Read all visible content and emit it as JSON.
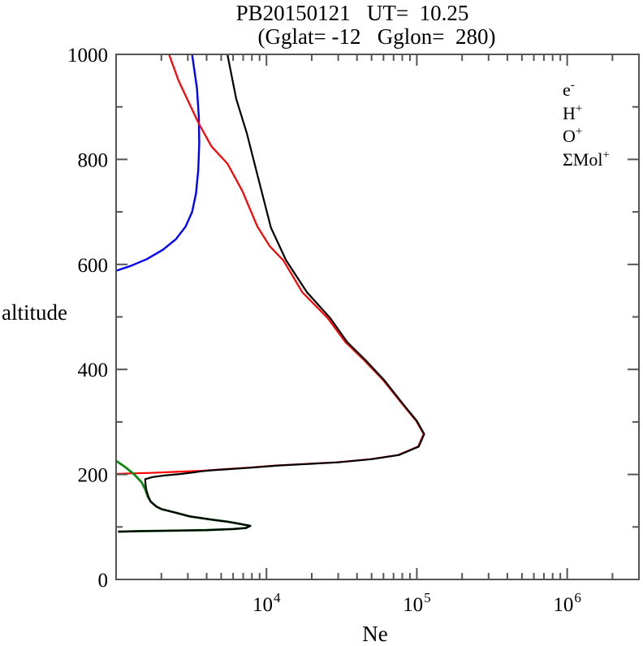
{
  "chart_data": {
    "type": "line",
    "title": "PB20150121   UT=  10.25",
    "subtitle": "(Gglat= -12   Gglon=  280)",
    "xlabel": "Ne",
    "ylabel": "altitude",
    "x_scale": "log",
    "y_scale": "linear",
    "xlim": [
      1000,
      3000000
    ],
    "ylim": [
      0,
      1000
    ],
    "grid": false,
    "frame_color": "#555555",
    "x_major_ticks": [
      {
        "value": 10000,
        "base": "10",
        "exp": "4"
      },
      {
        "value": 100000,
        "base": "10",
        "exp": "5"
      },
      {
        "value": 1000000,
        "base": "10",
        "exp": "6"
      }
    ],
    "y_major_ticks": [
      {
        "value": 0,
        "label": "0"
      },
      {
        "value": 200,
        "label": "200"
      },
      {
        "value": 400,
        "label": "400"
      },
      {
        "value": 600,
        "label": "600"
      },
      {
        "value": 800,
        "label": "800"
      },
      {
        "value": 1000,
        "label": "1000"
      }
    ],
    "y_minor_ticks": [
      100,
      300,
      500,
      700,
      900
    ],
    "legend_position": "upper-right-inside",
    "legend": [
      {
        "id": "electron",
        "base": "e",
        "sup": "-",
        "color": "#000000"
      },
      {
        "id": "h-plus",
        "base": "H",
        "sup": "+",
        "color": "#0000ff"
      },
      {
        "id": "o-plus",
        "base": "O",
        "sup": "+",
        "color": "#ff0000"
      },
      {
        "id": "mol-plus",
        "base": "ΣMol",
        "sup": "+",
        "color": "#118811"
      }
    ],
    "series": [
      {
        "id": "h-plus",
        "name": "H+",
        "color": "#0000ff",
        "width": 2.4,
        "points": [
          [
            3200,
            1000
          ],
          [
            3450,
            935
          ],
          [
            3550,
            880
          ],
          [
            3570,
            830
          ],
          [
            3520,
            780
          ],
          [
            3400,
            735
          ],
          [
            3200,
            700
          ],
          [
            2900,
            672
          ],
          [
            2500,
            648
          ],
          [
            2050,
            628
          ],
          [
            1600,
            610
          ],
          [
            1250,
            597
          ],
          [
            1000,
            588
          ]
        ]
      },
      {
        "id": "o-plus",
        "name": "O+",
        "color": "#ff0000",
        "width": 2.2,
        "points": [
          [
            2250,
            1000
          ],
          [
            2600,
            950
          ],
          [
            3000,
            912
          ],
          [
            3550,
            868
          ],
          [
            4300,
            825
          ],
          [
            5500,
            792
          ],
          [
            6900,
            740
          ],
          [
            8700,
            672
          ],
          [
            10500,
            635
          ],
          [
            13000,
            607
          ],
          [
            17300,
            547
          ],
          [
            25500,
            498
          ],
          [
            33500,
            452
          ],
          [
            44500,
            418
          ],
          [
            59500,
            380
          ],
          [
            80500,
            333
          ],
          [
            99000,
            302
          ],
          [
            111000,
            277
          ],
          [
            102000,
            253
          ],
          [
            75000,
            237
          ],
          [
            49000,
            229
          ],
          [
            29000,
            223
          ],
          [
            18000,
            220
          ],
          [
            11500,
            217
          ],
          [
            7600,
            213
          ],
          [
            5300,
            210
          ],
          [
            3700,
            207
          ],
          [
            2500,
            205
          ],
          [
            1700,
            203
          ],
          [
            1250,
            202
          ],
          [
            1000,
            201
          ]
        ]
      },
      {
        "id": "mol-plus",
        "name": "ΣMol+",
        "color": "#118811",
        "width": 2.8,
        "points": [
          [
            1000,
            226
          ],
          [
            1150,
            214
          ],
          [
            1320,
            200
          ],
          [
            1480,
            185
          ],
          [
            1570,
            170
          ],
          [
            1620,
            158
          ],
          [
            1700,
            148
          ],
          [
            1850,
            139
          ],
          [
            2000,
            134
          ],
          [
            2500,
            127
          ],
          [
            3100,
            120
          ],
          [
            4300,
            114
          ],
          [
            5500,
            110
          ],
          [
            6600,
            106
          ],
          [
            7800,
            102
          ],
          [
            7300,
            98
          ],
          [
            6000,
            96
          ],
          [
            4000,
            94
          ],
          [
            2500,
            93
          ],
          [
            1400,
            92
          ],
          [
            1030,
            91
          ]
        ]
      },
      {
        "id": "electron",
        "name": "e-",
        "color": "#000000",
        "width": 2.2,
        "points": [
          [
            5500,
            1000
          ],
          [
            6300,
            915
          ],
          [
            7400,
            850
          ],
          [
            8900,
            760
          ],
          [
            10700,
            670
          ],
          [
            13500,
            608
          ],
          [
            18600,
            547
          ],
          [
            26500,
            498
          ],
          [
            34500,
            452
          ],
          [
            45500,
            418
          ],
          [
            60500,
            380
          ],
          [
            81500,
            333
          ],
          [
            100000,
            302
          ],
          [
            112000,
            277
          ],
          [
            103000,
            253
          ],
          [
            76000,
            237
          ],
          [
            50000,
            229
          ],
          [
            30000,
            223
          ],
          [
            19000,
            220
          ],
          [
            12000,
            217
          ],
          [
            8000,
            213
          ],
          [
            5600,
            210
          ],
          [
            4400,
            208
          ],
          [
            3700,
            206
          ],
          [
            3300,
            204
          ],
          [
            2700,
            201
          ],
          [
            2100,
            198
          ],
          [
            1750,
            195
          ],
          [
            1560,
            191
          ],
          [
            1570,
            180
          ],
          [
            1590,
            170
          ],
          [
            1640,
            158
          ],
          [
            1700,
            148
          ],
          [
            1850,
            139
          ],
          [
            2000,
            134
          ],
          [
            2500,
            127
          ],
          [
            3100,
            120
          ],
          [
            4300,
            114
          ],
          [
            5500,
            110
          ],
          [
            6600,
            106
          ],
          [
            7800,
            102
          ],
          [
            7300,
            98
          ],
          [
            6000,
            96
          ],
          [
            4000,
            94
          ],
          [
            2500,
            93
          ],
          [
            1400,
            92
          ],
          [
            1030,
            91
          ]
        ]
      }
    ]
  }
}
